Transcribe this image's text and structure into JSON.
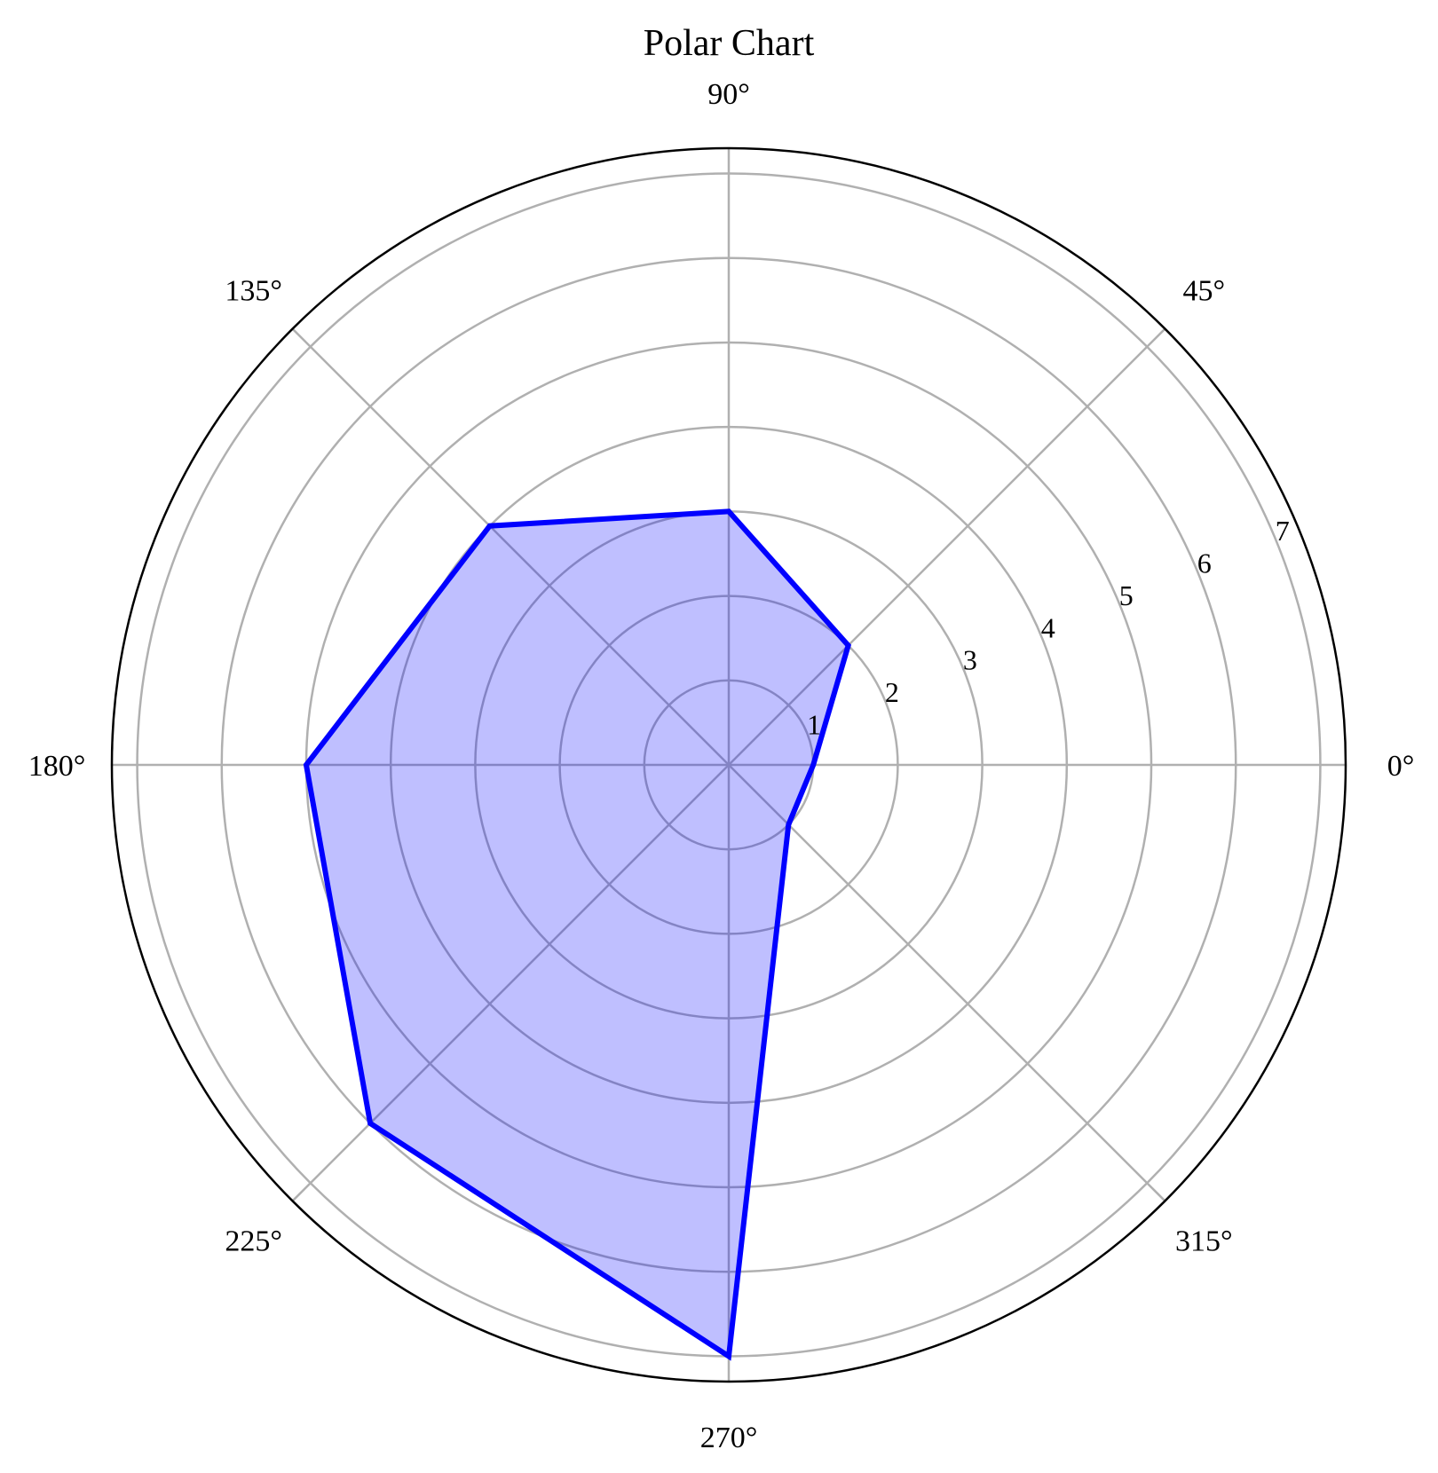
{
  "chart_data": {
    "type": "polar-area",
    "title": "Polar Chart",
    "theta_unit": "degrees",
    "theta_ticks": [
      0,
      45,
      90,
      135,
      180,
      225,
      270,
      315
    ],
    "theta_tick_labels": [
      "0°",
      "45°",
      "90°",
      "135°",
      "180°",
      "225°",
      "270°",
      "315°"
    ],
    "r_ticks": [
      1,
      2,
      3,
      4,
      5,
      6,
      7
    ],
    "r_tick_labels": [
      "1",
      "2",
      "3",
      "4",
      "5",
      "6",
      "7"
    ],
    "rlim": [
      0,
      7.3
    ],
    "r_label_angle": 22.5,
    "grid": true,
    "series": [
      {
        "theta": [
          0,
          45,
          90,
          135,
          180,
          225,
          270,
          315
        ],
        "r": [
          1,
          2,
          3,
          4,
          5,
          6,
          7,
          1
        ],
        "line_color": "#0000ff",
        "fill_color": "#0000ff",
        "fill_alpha": 0.25
      }
    ]
  }
}
